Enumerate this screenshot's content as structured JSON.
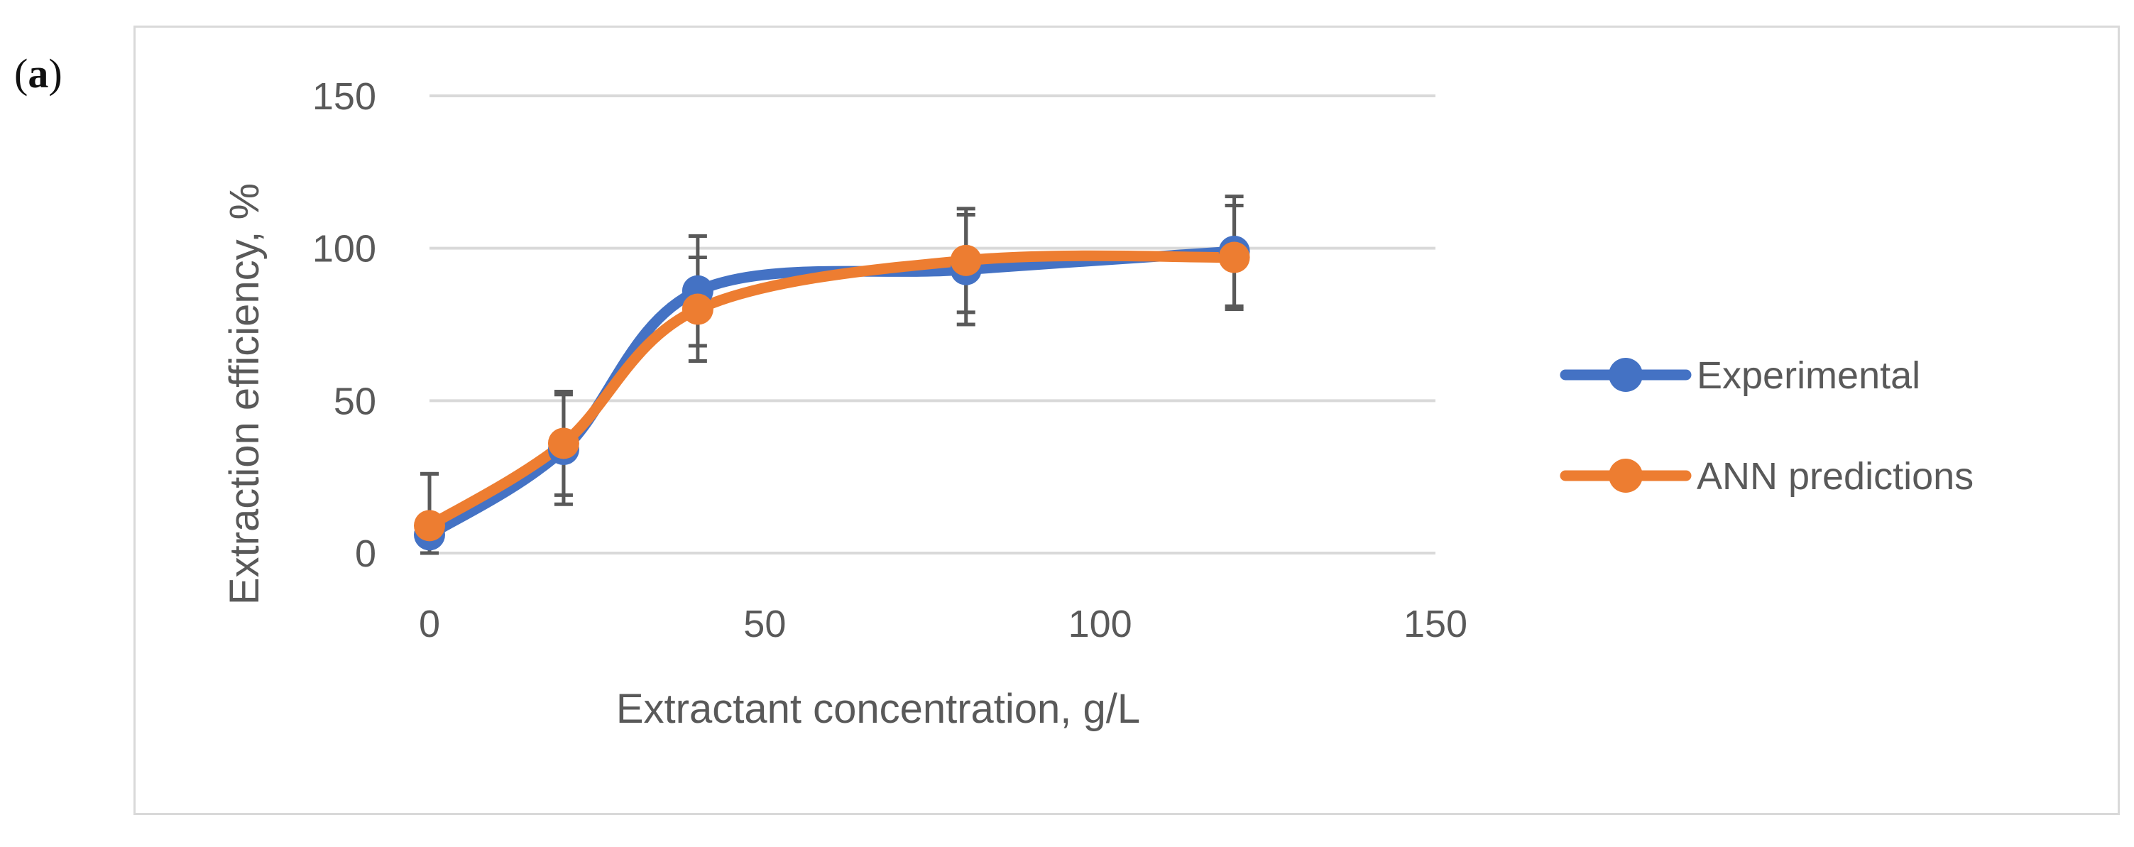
{
  "panel_label": {
    "open": "(",
    "letter": "a",
    "close": ")"
  },
  "chart_data": {
    "type": "line",
    "title": "",
    "xlabel": "Extractant concentration, g/L",
    "ylabel": "Extraction efficiency, %",
    "xlim": [
      0,
      150
    ],
    "ylim": [
      0,
      150
    ],
    "xticks": [
      0,
      50,
      100,
      150
    ],
    "yticks": [
      0,
      50,
      100,
      150
    ],
    "grid": "horizontal",
    "legend_position": "right",
    "x": [
      0,
      20,
      40,
      80,
      120
    ],
    "series": [
      {
        "name": "Experimental",
        "color": "#4472c4",
        "values": [
          6,
          34,
          86,
          93,
          99
        ],
        "error": [
          20,
          18,
          18,
          18,
          18
        ],
        "smooth": true
      },
      {
        "name": "ANN predictions",
        "color": "#ed7d31",
        "values": [
          9,
          36,
          80,
          96,
          97
        ],
        "error": [
          17,
          17,
          17,
          17,
          17
        ],
        "smooth": true
      }
    ],
    "error_bar_color": "#595959"
  }
}
